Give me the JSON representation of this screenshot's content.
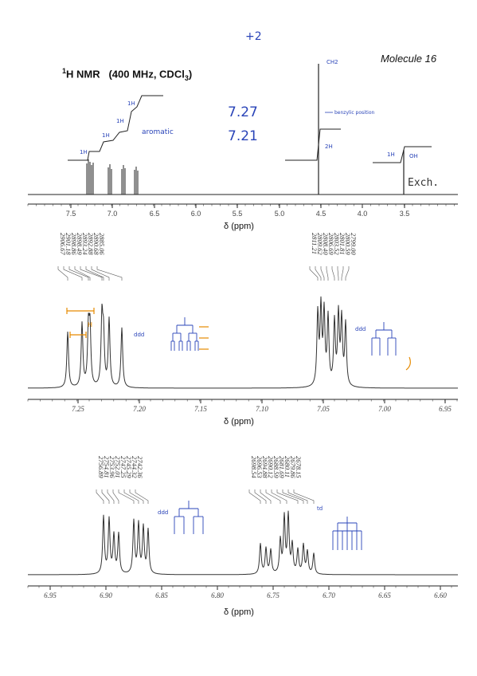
{
  "header": {
    "nucleus": "1",
    "nucleus_symbol": "H NMR",
    "conditions_prefix": "(400 MHz, CDCl",
    "conditions_sub": "3",
    "conditions_suffix": ")",
    "molecule": "Molecule 16"
  },
  "annotations": {
    "top_scribble": "+2",
    "aromatic": "aromatic",
    "shift_a": "7.27",
    "shift_b": "7.21",
    "ch2": "CH2",
    "benzylic": "benzylic position",
    "two_h": "2H",
    "one_h": "1H",
    "oh": "OH",
    "exch": "Exch.",
    "integrals": [
      "1H",
      "1H",
      "1H",
      "1H"
    ],
    "ddd": "ddd",
    "dd": "dd",
    "td": "td"
  },
  "panel1": {
    "axis_label": "δ (ppm)",
    "ticks": [
      "7.5",
      "7.0",
      "6.5",
      "6.0",
      "5.5",
      "5.0",
      "4.5",
      "4.0",
      "3.5"
    ]
  },
  "panel2": {
    "axis_label": "δ (ppm)",
    "ticks": [
      "7.25",
      "7.20",
      "7.15",
      "7.10",
      "7.05",
      "7.00",
      "6.95"
    ],
    "peaks_left": [
      "2906.67",
      "2901.18",
      "2898.86",
      "2898.49",
      "2893.24",
      "2892.88",
      "2890.68",
      "2885.06"
    ],
    "peaks_right": [
      "2811.21",
      "2809.62",
      "2808.40",
      "2806.69",
      "2803.52",
      "2801.81",
      "2800.59",
      "2799.00"
    ]
  },
  "panel3": {
    "axis_label": "δ (ppm)",
    "ticks": [
      "6.95",
      "6.90",
      "6.85",
      "6.80",
      "6.75",
      "6.70",
      "6.65",
      "6.60"
    ],
    "peaks_left": [
      "2756.89",
      "2754.81",
      "2753.96",
      "2752.01",
      "2747.25",
      "2745.29",
      "2744.32",
      "2742.36"
    ],
    "peaks_right": [
      "2698.54",
      "2696.53",
      "2694.88",
      "2690.12",
      "2688.59",
      "2681.69",
      "2680.11",
      "2679.86",
      "2678.15"
    ]
  }
}
